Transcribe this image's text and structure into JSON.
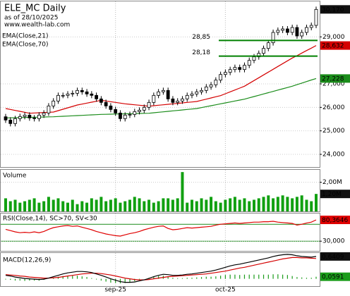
{
  "chart_data": [
    {
      "type": "candlestick",
      "title": "ELE_MC Daily",
      "subtitle": "as of 28/10/2025",
      "source": "www.wealth-lab.com",
      "open": [
        25.6,
        25.46,
        25.31,
        25.52,
        25.61,
        25.67,
        25.55,
        25.52,
        25.67,
        25.76,
        26.06,
        26.27,
        26.51,
        26.51,
        26.57,
        26.6,
        26.72,
        26.66,
        26.57,
        26.51,
        26.36,
        26.21,
        26.06,
        25.91,
        25.76,
        25.52,
        25.67,
        25.7,
        25.82,
        25.88,
        26.0,
        26.21,
        26.51,
        26.66,
        26.72,
        26.36,
        26.21,
        26.27,
        26.36,
        26.51,
        26.57,
        26.66,
        26.72,
        26.87,
        26.96,
        27.16,
        27.4,
        27.49,
        27.61,
        27.7,
        27.61,
        27.79,
        28.0,
        28.15,
        28.3,
        28.51,
        28.75,
        29.19,
        29.28,
        29.34,
        29.19,
        29.4,
        29.04,
        29.19,
        29.4,
        29.49
      ],
      "high": [
        25.72,
        25.58,
        25.64,
        25.73,
        25.79,
        25.79,
        25.67,
        25.79,
        25.88,
        26.18,
        26.39,
        26.63,
        26.63,
        26.69,
        26.72,
        26.84,
        26.84,
        26.78,
        26.69,
        26.63,
        26.48,
        26.33,
        26.18,
        26.03,
        25.88,
        25.79,
        25.82,
        25.94,
        26.0,
        26.12,
        26.33,
        26.63,
        26.78,
        26.84,
        26.84,
        26.48,
        26.39,
        26.48,
        26.63,
        26.69,
        26.78,
        26.84,
        26.99,
        27.08,
        27.28,
        27.52,
        27.61,
        27.73,
        27.82,
        27.82,
        27.91,
        28.12,
        28.27,
        28.42,
        28.63,
        28.87,
        29.31,
        29.4,
        29.46,
        29.46,
        29.52,
        29.52,
        29.31,
        29.52,
        29.61,
        30.29
      ],
      "low": [
        25.34,
        25.19,
        25.19,
        25.4,
        25.49,
        25.43,
        25.4,
        25.4,
        25.55,
        25.64,
        25.94,
        26.15,
        26.39,
        26.39,
        26.45,
        26.48,
        26.54,
        26.45,
        26.39,
        26.24,
        26.09,
        25.94,
        25.79,
        25.64,
        25.4,
        25.4,
        25.55,
        25.58,
        25.7,
        25.76,
        25.88,
        26.09,
        26.39,
        26.54,
        26.24,
        26.09,
        26.09,
        26.15,
        26.24,
        26.39,
        26.45,
        26.54,
        26.6,
        26.75,
        26.84,
        27.04,
        27.28,
        27.37,
        27.49,
        27.49,
        27.49,
        27.67,
        27.88,
        28.03,
        28.18,
        28.39,
        28.63,
        29.07,
        29.16,
        29.07,
        29.07,
        28.92,
        28.92,
        29.07,
        29.28,
        29.37
      ],
      "close": [
        25.46,
        25.31,
        25.52,
        25.61,
        25.67,
        25.55,
        25.52,
        25.67,
        25.76,
        26.06,
        26.27,
        26.51,
        26.51,
        26.57,
        26.6,
        26.72,
        26.66,
        26.57,
        26.51,
        26.36,
        26.21,
        26.06,
        25.91,
        25.76,
        25.52,
        25.67,
        25.7,
        25.82,
        25.88,
        26.0,
        26.21,
        26.51,
        26.66,
        26.72,
        26.36,
        26.21,
        26.27,
        26.36,
        26.51,
        26.57,
        26.66,
        26.72,
        26.87,
        26.96,
        27.16,
        27.4,
        27.49,
        27.61,
        27.7,
        27.61,
        27.79,
        28.0,
        28.15,
        28.3,
        28.51,
        28.75,
        29.19,
        29.28,
        29.34,
        29.19,
        29.4,
        29.04,
        29.19,
        29.4,
        29.49,
        30.17
      ],
      "close_label": "30,170",
      "ylim": [
        23.46,
        30.54
      ],
      "yticks": [
        {
          "value": 24,
          "label": "24,000"
        },
        {
          "value": 25,
          "label": "25,000"
        },
        {
          "value": 26,
          "label": "26,000"
        },
        {
          "value": 27,
          "label": "27,000"
        },
        {
          "value": 29,
          "label": "29,000"
        }
      ],
      "xticks": [
        {
          "value": 23,
          "label": "sep-25"
        },
        {
          "value": 46,
          "label": "oct-25"
        }
      ],
      "series": [
        {
          "name": "EMA(Close,21)",
          "color": "#d40000",
          "value_label": "28,632",
          "values": [
            25.95,
            25.91,
            25.87,
            25.83,
            25.79,
            25.75,
            25.76,
            25.77,
            25.78,
            25.79,
            25.8,
            25.86,
            25.92,
            25.98,
            26.04,
            26.1,
            26.14,
            26.18,
            26.22,
            26.26,
            26.3,
            26.27,
            26.24,
            26.21,
            26.18,
            26.15,
            26.13,
            26.11,
            26.09,
            26.07,
            26.05,
            26.07,
            26.09,
            26.11,
            26.13,
            26.15,
            26.17,
            26.19,
            26.21,
            26.23,
            26.25,
            26.3,
            26.35,
            26.4,
            26.45,
            26.5,
            26.58,
            26.66,
            26.74,
            26.82,
            26.9,
            27.02,
            27.14,
            27.26,
            27.38,
            27.5,
            27.62,
            27.74,
            27.86,
            27.98,
            28.1,
            28.2,
            28.31,
            28.42,
            28.52,
            28.632
          ]
        },
        {
          "name": "EMA(Close,70)",
          "color": "#1a8c1a",
          "value_label": "27,228",
          "values": [
            25.55,
            25.555,
            25.56,
            25.565,
            25.57,
            25.575,
            25.58,
            25.585,
            25.59,
            25.595,
            25.6,
            25.61,
            25.62,
            25.63,
            25.64,
            25.65,
            25.66,
            25.67,
            25.68,
            25.69,
            25.7,
            25.705,
            25.71,
            25.715,
            25.72,
            25.725,
            25.73,
            25.735,
            25.74,
            25.745,
            25.75,
            25.77,
            25.79,
            25.81,
            25.83,
            25.85,
            25.87,
            25.89,
            25.91,
            25.93,
            25.95,
            25.99,
            26.03,
            26.07,
            26.11,
            26.15,
            26.19,
            26.23,
            26.27,
            26.31,
            26.35,
            26.405,
            26.46,
            26.515,
            26.57,
            26.625,
            26.68,
            26.735,
            26.79,
            26.845,
            26.9,
            26.966,
            27.032,
            27.098,
            27.164,
            27.228
          ]
        }
      ],
      "levels": [
        {
          "value": 28.85,
          "label": "28,85"
        },
        {
          "value": 28.18,
          "label": "28,18"
        }
      ],
      "level_color": "#008000"
    },
    {
      "type": "bar",
      "title": "Volume",
      "color": "#11a011",
      "values": [
        0.9,
        0.7,
        0.8,
        0.6,
        0.7,
        0.8,
        0.9,
        0.6,
        0.7,
        1.0,
        0.8,
        0.9,
        0.7,
        0.6,
        0.8,
        0.5,
        0.7,
        0.6,
        0.9,
        0.8,
        1.0,
        0.7,
        0.8,
        0.9,
        0.6,
        0.7,
        0.8,
        1.0,
        0.9,
        0.7,
        0.8,
        0.6,
        0.7,
        0.9,
        0.9,
        0.8,
        0.9,
        2.7,
        0.6,
        0.8,
        0.7,
        0.9,
        0.8,
        1.0,
        0.7,
        0.6,
        0.8,
        0.9,
        1.0,
        0.8,
        0.9,
        0.7,
        0.8,
        0.9,
        1.0,
        1.1,
        0.9,
        1.0,
        1.1,
        1.0,
        0.9,
        1.0,
        1.1,
        0.8,
        0.7,
        1.2
      ],
      "value_label": "1,20M",
      "ylim": [
        0,
        2.9
      ],
      "yticks": [
        {
          "value": 2,
          "label": "2,00M"
        }
      ]
    },
    {
      "type": "line",
      "title": "RSI(Close,14), SC>70, SV<30",
      "color": "#e00000",
      "values": [
        58,
        55,
        52,
        50,
        51,
        50,
        52,
        50,
        53,
        58,
        62,
        64,
        66,
        67,
        65,
        66,
        63,
        60,
        57,
        53,
        50,
        47,
        45,
        43,
        42,
        45,
        48,
        50,
        53,
        57,
        60,
        63,
        65,
        66,
        60,
        57,
        58,
        60,
        62,
        61,
        62,
        63,
        64,
        65,
        68,
        70,
        71,
        72,
        73,
        72,
        73,
        74,
        75,
        75,
        76,
        76,
        77,
        75,
        74,
        73,
        72,
        68,
        70,
        73,
        75,
        80.3646
      ],
      "value_label": "80,3646",
      "ylim": [
        7,
        97
      ],
      "yticks": [
        {
          "value": 30,
          "label": "30,000"
        }
      ],
      "levels": [
        70,
        30
      ],
      "level_color": "#1a8c1a"
    },
    {
      "type": "macd",
      "title": "MACD(12,26,9)",
      "macd_color": "#000000",
      "signal_color": "#d40000",
      "histogram_color": "#1a9c1a",
      "macd": [
        0.1,
        0.08,
        0.05,
        0.03,
        0.01,
        0.0,
        -0.01,
        -0.02,
        -0.01,
        0.02,
        0.06,
        0.1,
        0.14,
        0.17,
        0.19,
        0.21,
        0.21,
        0.2,
        0.18,
        0.14,
        0.1,
        0.05,
        0.0,
        -0.04,
        -0.08,
        -0.1,
        -0.1,
        -0.09,
        -0.06,
        -0.03,
        0.01,
        0.06,
        0.1,
        0.13,
        0.12,
        0.1,
        0.1,
        0.11,
        0.13,
        0.14,
        0.16,
        0.18,
        0.2,
        0.22,
        0.25,
        0.29,
        0.33,
        0.37,
        0.4,
        0.42,
        0.45,
        0.48,
        0.51,
        0.54,
        0.57,
        0.6,
        0.64,
        0.67,
        0.69,
        0.7,
        0.69,
        0.66,
        0.64,
        0.63,
        0.62,
        0.6409
      ],
      "signal": [
        0.12,
        0.11,
        0.1,
        0.08,
        0.07,
        0.05,
        0.04,
        0.03,
        0.02,
        0.02,
        0.03,
        0.04,
        0.06,
        0.08,
        0.1,
        0.12,
        0.14,
        0.15,
        0.16,
        0.16,
        0.15,
        0.13,
        0.11,
        0.08,
        0.05,
        0.02,
        0.0,
        -0.02,
        -0.03,
        -0.03,
        -0.02,
        0.0,
        0.02,
        0.04,
        0.06,
        0.07,
        0.08,
        0.09,
        0.1,
        0.11,
        0.12,
        0.13,
        0.14,
        0.16,
        0.18,
        0.2,
        0.22,
        0.25,
        0.28,
        0.31,
        0.33,
        0.36,
        0.39,
        0.42,
        0.45,
        0.48,
        0.51,
        0.54,
        0.57,
        0.59,
        0.61,
        0.61,
        0.6,
        0.6,
        0.59,
        0.5818
      ],
      "histogram": [
        -0.02,
        -0.03,
        -0.05,
        -0.05,
        -0.06,
        -0.05,
        -0.05,
        -0.05,
        -0.03,
        0.0,
        0.03,
        0.06,
        0.08,
        0.09,
        0.09,
        0.09,
        0.07,
        0.05,
        0.02,
        -0.02,
        -0.05,
        -0.08,
        -0.11,
        -0.12,
        -0.13,
        -0.12,
        -0.1,
        -0.07,
        -0.03,
        0.0,
        0.03,
        0.06,
        0.08,
        0.09,
        0.06,
        0.03,
        0.02,
        0.02,
        0.03,
        0.03,
        0.04,
        0.05,
        0.06,
        0.06,
        0.07,
        0.09,
        0.11,
        0.12,
        0.12,
        0.11,
        0.12,
        0.12,
        0.12,
        0.12,
        0.12,
        0.12,
        0.13,
        0.13,
        0.12,
        0.11,
        0.08,
        0.05,
        0.04,
        0.03,
        0.03,
        0.0591
      ],
      "macd_label": "0,6409",
      "histogram_label": "0,0591",
      "ylim": [
        -0.21,
        0.76
      ]
    }
  ]
}
